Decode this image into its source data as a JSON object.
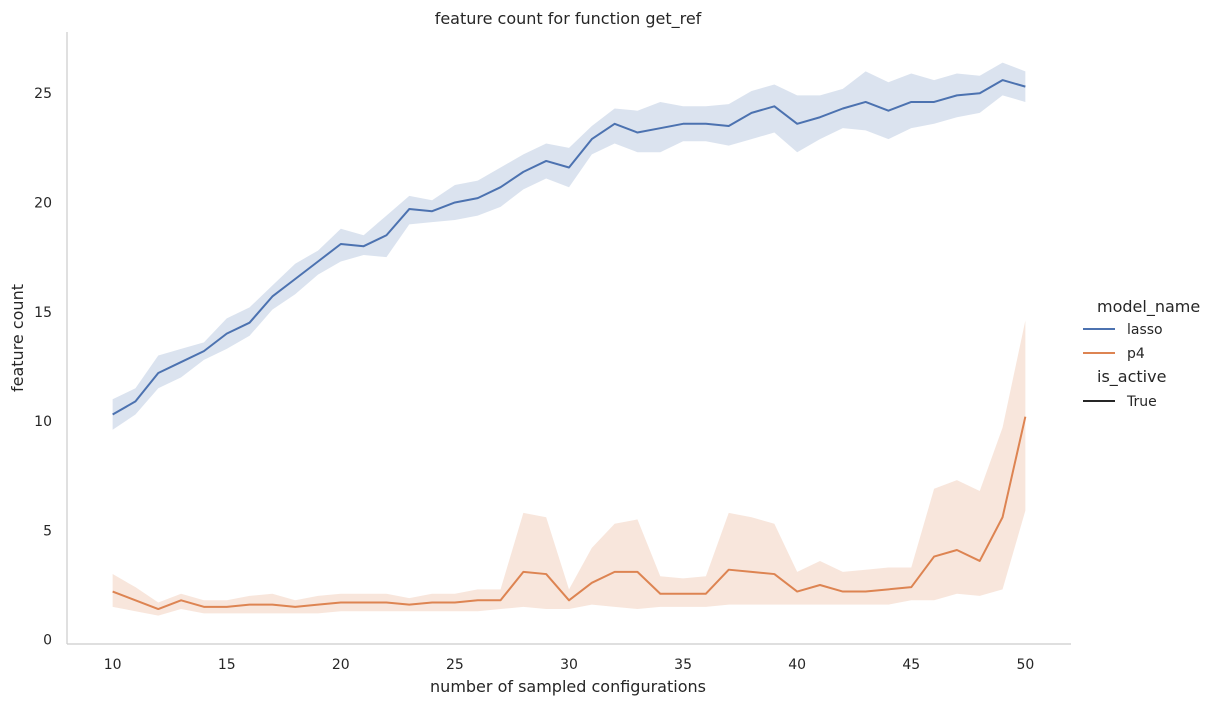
{
  "chart_data": {
    "type": "line",
    "title": "feature count for function get_ref",
    "xlabel": "number of sampled configurations",
    "ylabel": "feature count",
    "xlim": [
      8,
      52
    ],
    "ylim": [
      -0.2,
      27.8
    ],
    "xticks": [
      10,
      15,
      20,
      25,
      30,
      35,
      40,
      45,
      50
    ],
    "yticks": [
      0,
      5,
      10,
      15,
      20,
      25
    ],
    "grid": false,
    "legend_placement": "right",
    "legend": {
      "hue_title": "model_name",
      "style_title": "is_active",
      "style_entries": [
        {
          "label": "True",
          "color": "#262626"
        }
      ]
    },
    "x": [
      10,
      11,
      12,
      13,
      14,
      15,
      16,
      17,
      18,
      19,
      20,
      21,
      22,
      23,
      24,
      25,
      26,
      27,
      28,
      29,
      30,
      31,
      32,
      33,
      34,
      35,
      36,
      37,
      38,
      39,
      40,
      41,
      42,
      43,
      44,
      45,
      46,
      47,
      48,
      49,
      50
    ],
    "series": [
      {
        "name": "lasso",
        "color": "#4c72b0",
        "values": [
          10.3,
          10.9,
          12.2,
          12.7,
          13.2,
          14.0,
          14.5,
          15.7,
          16.5,
          17.3,
          18.1,
          18.0,
          18.5,
          19.7,
          19.6,
          20.0,
          20.2,
          20.7,
          21.4,
          21.9,
          21.6,
          22.9,
          23.6,
          23.2,
          23.4,
          23.6,
          23.6,
          23.5,
          24.1,
          24.4,
          23.6,
          23.9,
          24.3,
          24.6,
          24.2,
          24.6,
          24.6,
          24.9,
          25.0,
          25.6,
          25.3
        ],
        "ci_low": [
          9.6,
          10.3,
          11.5,
          12.0,
          12.8,
          13.3,
          13.9,
          15.1,
          15.8,
          16.7,
          17.3,
          17.6,
          17.5,
          19.0,
          19.1,
          19.2,
          19.4,
          19.8,
          20.6,
          21.1,
          20.7,
          22.2,
          22.7,
          22.3,
          22.3,
          22.8,
          22.8,
          22.6,
          22.9,
          23.2,
          22.3,
          22.9,
          23.4,
          23.3,
          22.9,
          23.4,
          23.6,
          23.9,
          24.1,
          24.9,
          24.6
        ],
        "ci_high": [
          11.0,
          11.5,
          13.0,
          13.3,
          13.6,
          14.7,
          15.2,
          16.2,
          17.2,
          17.8,
          18.8,
          18.5,
          19.4,
          20.3,
          20.1,
          20.8,
          21.0,
          21.6,
          22.2,
          22.7,
          22.5,
          23.5,
          24.3,
          24.2,
          24.6,
          24.4,
          24.4,
          24.5,
          25.1,
          25.4,
          24.9,
          24.9,
          25.2,
          26.0,
          25.5,
          25.9,
          25.6,
          25.9,
          25.8,
          26.4,
          26.0
        ]
      },
      {
        "name": "p4",
        "color": "#dd8452",
        "values": [
          2.2,
          1.8,
          1.4,
          1.8,
          1.5,
          1.5,
          1.6,
          1.6,
          1.5,
          1.6,
          1.7,
          1.7,
          1.7,
          1.6,
          1.7,
          1.7,
          1.8,
          1.8,
          3.1,
          3.0,
          1.8,
          2.6,
          3.1,
          3.1,
          2.1,
          2.1,
          2.1,
          3.2,
          3.1,
          3.0,
          2.2,
          2.5,
          2.2,
          2.2,
          2.3,
          2.4,
          3.8,
          4.1,
          3.6,
          5.6,
          10.2
        ],
        "ci_low": [
          1.5,
          1.3,
          1.1,
          1.4,
          1.2,
          1.2,
          1.2,
          1.2,
          1.2,
          1.2,
          1.3,
          1.3,
          1.3,
          1.3,
          1.3,
          1.3,
          1.3,
          1.4,
          1.5,
          1.4,
          1.4,
          1.6,
          1.5,
          1.4,
          1.5,
          1.5,
          1.5,
          1.6,
          1.6,
          1.6,
          1.6,
          1.6,
          1.6,
          1.6,
          1.6,
          1.8,
          1.8,
          2.1,
          2.0,
          2.3,
          5.9
        ],
        "ci_high": [
          3.0,
          2.4,
          1.7,
          2.1,
          1.8,
          1.8,
          2.0,
          2.1,
          1.8,
          2.0,
          2.1,
          2.1,
          2.1,
          1.9,
          2.1,
          2.1,
          2.3,
          2.3,
          5.8,
          5.6,
          2.3,
          4.2,
          5.3,
          5.5,
          2.9,
          2.8,
          2.9,
          5.8,
          5.6,
          5.3,
          3.1,
          3.6,
          3.1,
          3.2,
          3.3,
          3.3,
          6.9,
          7.3,
          6.8,
          9.7,
          14.6
        ]
      }
    ]
  }
}
